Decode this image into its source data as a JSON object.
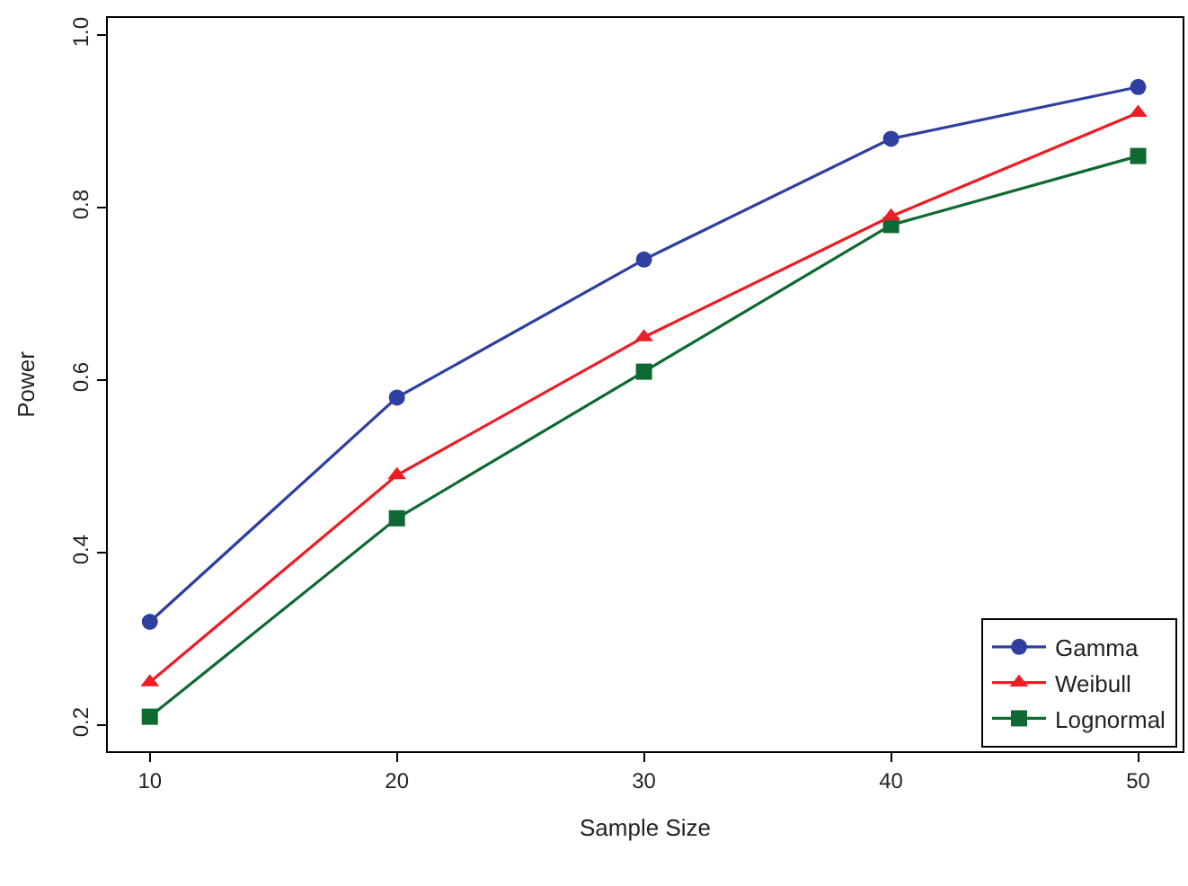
{
  "chart_data": {
    "type": "line",
    "xlabel": "Sample Size",
    "ylabel": "Power",
    "x": [
      10,
      20,
      30,
      40,
      50
    ],
    "xlim": [
      8.3,
      51.8
    ],
    "xticks": [
      10,
      20,
      30,
      40,
      50
    ],
    "ylim": [
      0.17,
      1.02
    ],
    "yticks": [
      {
        "value": 0.2,
        "label": "0.2"
      },
      {
        "value": 0.4,
        "label": "0.4"
      },
      {
        "value": 0.6,
        "label": "0.6"
      },
      {
        "value": 0.8,
        "label": "0.8"
      },
      {
        "value": 1.0,
        "label": "1.0"
      }
    ],
    "legend": "bottom right",
    "line_style": "solid",
    "series": [
      {
        "name": "Gamma",
        "color": "#2e3fa0",
        "marker": "circle",
        "values": [
          0.32,
          0.58,
          0.74,
          0.88,
          0.94
        ]
      },
      {
        "name": "Weibull",
        "color": "#ee1c24",
        "marker": "triangle",
        "values": [
          0.25,
          0.49,
          0.65,
          0.79,
          0.91
        ]
      },
      {
        "name": "Lognormal",
        "color": "#0e6a32",
        "marker": "square",
        "values": [
          0.21,
          0.44,
          0.61,
          0.78,
          0.86
        ]
      }
    ]
  }
}
